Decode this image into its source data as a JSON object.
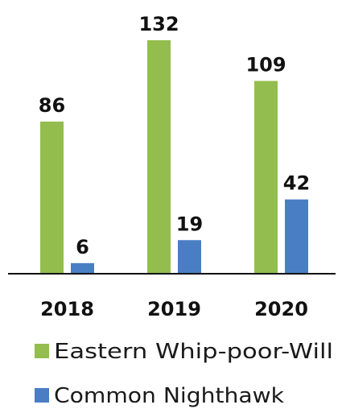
{
  "chart_data": {
    "type": "bar",
    "categories": [
      "2018",
      "2019",
      "2020"
    ],
    "series": [
      {
        "name": "Eastern Whip-poor-Will",
        "values": [
          86,
          132,
          109
        ],
        "color": "#93bd4e"
      },
      {
        "name": "Common Nighthawk",
        "values": [
          6,
          19,
          42
        ],
        "color": "#4a7ec4"
      }
    ],
    "legend_position": "bottom",
    "grid": false
  }
}
